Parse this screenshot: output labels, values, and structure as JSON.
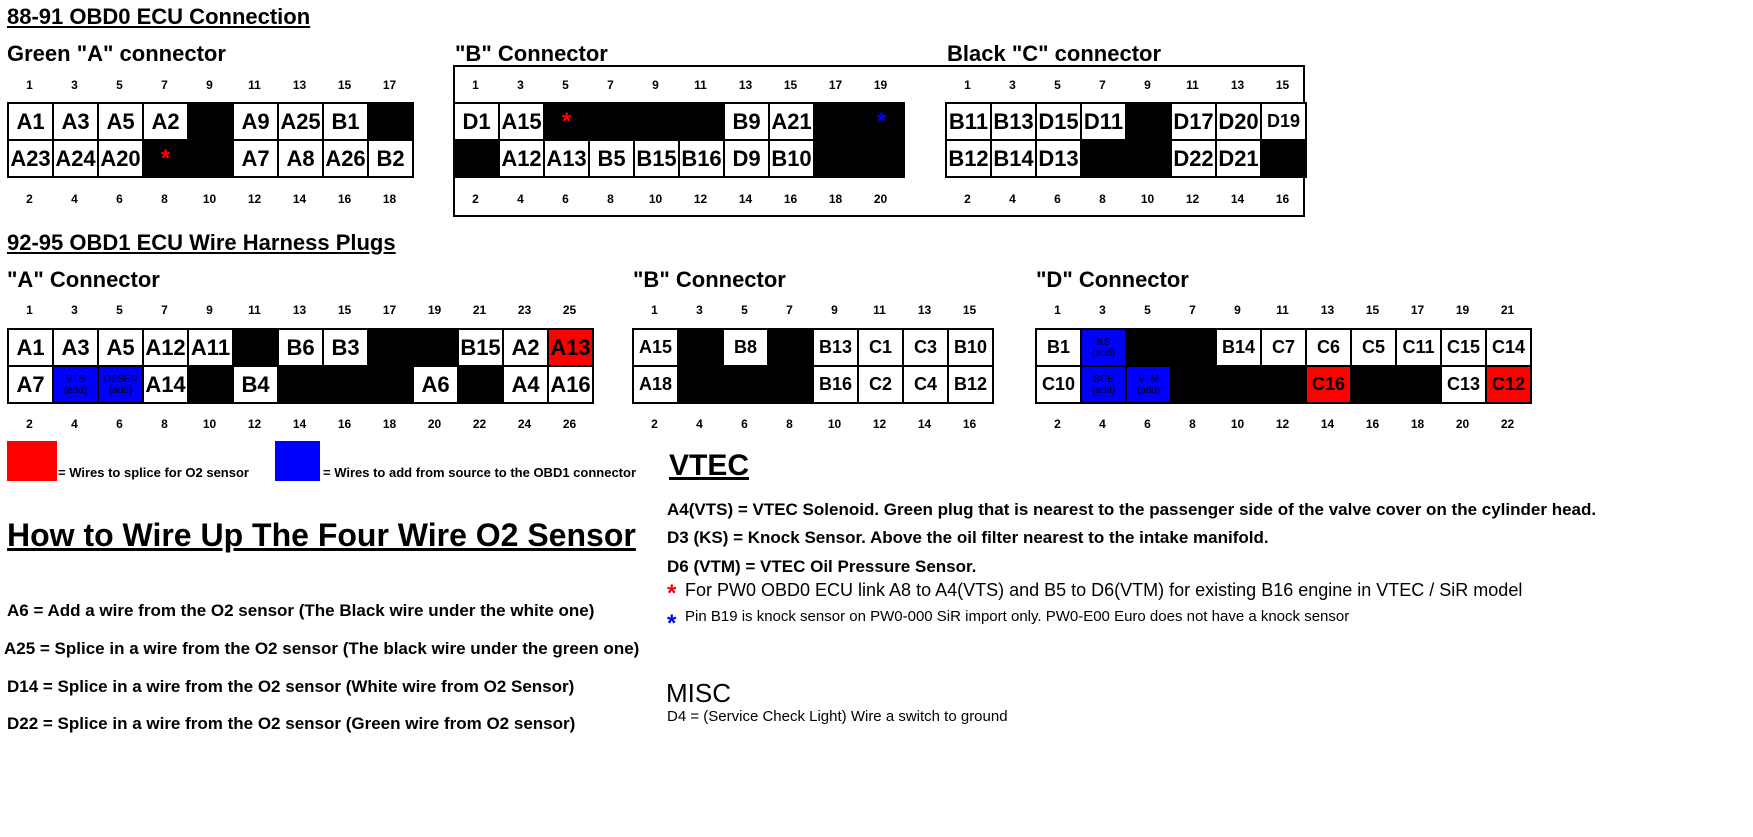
{
  "colors": {
    "red": "#ff0000",
    "blue": "#0000ff",
    "black": "#000000",
    "white": "#ffffff"
  },
  "obd0": {
    "heading": "88-91 OBD0 ECU Connection",
    "a": {
      "title": "Green \"A\" connector",
      "top_pins": [
        "1",
        "3",
        "5",
        "7",
        "9",
        "11",
        "13",
        "15",
        "17"
      ],
      "bottom_pins": [
        "2",
        "4",
        "6",
        "8",
        "10",
        "12",
        "14",
        "16",
        "18"
      ],
      "row1": [
        {
          "t": "A1"
        },
        {
          "t": "A3"
        },
        {
          "t": "A5"
        },
        {
          "t": "A2"
        },
        {
          "t": "",
          "c": "black"
        },
        {
          "t": "A9"
        },
        {
          "t": "A25"
        },
        {
          "t": "B1"
        },
        {
          "t": "",
          "c": "black"
        }
      ],
      "row2": [
        {
          "t": "A23"
        },
        {
          "t": "A24"
        },
        {
          "t": "A20"
        },
        {
          "t": "*",
          "c": "black",
          "star": "red"
        },
        {
          "t": "",
          "c": "black"
        },
        {
          "t": "A7"
        },
        {
          "t": "A8"
        },
        {
          "t": "A26"
        },
        {
          "t": "B2"
        }
      ]
    },
    "b": {
      "title": "\"B\" Connector",
      "top_pins": [
        "1",
        "3",
        "5",
        "7",
        "9",
        "11",
        "13",
        "15",
        "17",
        "19"
      ],
      "bottom_pins": [
        "2",
        "4",
        "6",
        "8",
        "10",
        "12",
        "14",
        "16",
        "18",
        "20"
      ],
      "row1": [
        {
          "t": "D1"
        },
        {
          "t": "A15"
        },
        {
          "t": "*",
          "c": "black",
          "star": "red"
        },
        {
          "t": "",
          "c": "black"
        },
        {
          "t": "",
          "c": "black"
        },
        {
          "t": "",
          "c": "black"
        },
        {
          "t": "B9"
        },
        {
          "t": "A21"
        },
        {
          "t": "",
          "c": "black"
        },
        {
          "t": "*",
          "c": "black",
          "star": "blue"
        }
      ],
      "row2": [
        {
          "t": "",
          "c": "black"
        },
        {
          "t": "A12"
        },
        {
          "t": "A13"
        },
        {
          "t": "B5"
        },
        {
          "t": "B15"
        },
        {
          "t": "B16"
        },
        {
          "t": "D9"
        },
        {
          "t": "B10"
        },
        {
          "t": "",
          "c": "black"
        },
        {
          "t": "",
          "c": "black"
        }
      ]
    },
    "c": {
      "title": "Black \"C\" connector",
      "top_pins": [
        "1",
        "3",
        "5",
        "7",
        "9",
        "11",
        "13",
        "15"
      ],
      "bottom_pins": [
        "2",
        "4",
        "6",
        "8",
        "10",
        "12",
        "14",
        "16"
      ],
      "row1": [
        {
          "t": "B11"
        },
        {
          "t": "B13"
        },
        {
          "t": "D15"
        },
        {
          "t": "D11"
        },
        {
          "t": "",
          "c": "black"
        },
        {
          "t": "D17"
        },
        {
          "t": "D20"
        },
        {
          "t": "D19",
          "small": true
        }
      ],
      "row2": [
        {
          "t": "B12"
        },
        {
          "t": "B14"
        },
        {
          "t": "D13"
        },
        {
          "t": "",
          "c": "black"
        },
        {
          "t": "",
          "c": "black"
        },
        {
          "t": "D22"
        },
        {
          "t": "D21"
        },
        {
          "t": "",
          "c": "black"
        }
      ]
    }
  },
  "obd1": {
    "heading": "92-95 OBD1 ECU Wire Harness Plugs",
    "a": {
      "title": "\"A\" Connector",
      "top_pins": [
        "1",
        "3",
        "5",
        "7",
        "9",
        "11",
        "13",
        "15",
        "17",
        "19",
        "21",
        "23",
        "25"
      ],
      "bottom_pins": [
        "2",
        "4",
        "6",
        "8",
        "10",
        "12",
        "14",
        "16",
        "18",
        "20",
        "22",
        "24",
        "26"
      ],
      "row1": [
        {
          "t": "A1"
        },
        {
          "t": "A3"
        },
        {
          "t": "A5"
        },
        {
          "t": "A12"
        },
        {
          "t": "A11"
        },
        {
          "t": "",
          "c": "black"
        },
        {
          "t": "B6"
        },
        {
          "t": "B3"
        },
        {
          "t": "",
          "c": "black"
        },
        {
          "t": "",
          "c": "black"
        },
        {
          "t": "B15"
        },
        {
          "t": "A2"
        },
        {
          "t": "A13",
          "c": "red"
        }
      ],
      "row2": [
        {
          "t": "A7"
        },
        {
          "t": "VTS",
          "t2": "(add)",
          "c": "blue"
        },
        {
          "t": "O2SEN",
          "t2": "(add)",
          "c": "blue"
        },
        {
          "t": "A14"
        },
        {
          "t": "",
          "c": "black"
        },
        {
          "t": "B4"
        },
        {
          "t": "",
          "c": "black"
        },
        {
          "t": "",
          "c": "black"
        },
        {
          "t": "",
          "c": "black"
        },
        {
          "t": "A6"
        },
        {
          "t": "",
          "c": "black"
        },
        {
          "t": "A4"
        },
        {
          "t": "A16"
        }
      ]
    },
    "b": {
      "title": "\"B\" Connector",
      "top_pins": [
        "1",
        "3",
        "5",
        "7",
        "9",
        "11",
        "13",
        "15"
      ],
      "bottom_pins": [
        "2",
        "4",
        "6",
        "8",
        "10",
        "12",
        "14",
        "16"
      ],
      "row1": [
        {
          "t": "A15",
          "small": true
        },
        {
          "t": "",
          "c": "black"
        },
        {
          "t": "B8",
          "small": true
        },
        {
          "t": "",
          "c": "black"
        },
        {
          "t": "B13",
          "small": true
        },
        {
          "t": "C1",
          "small": true
        },
        {
          "t": "C3",
          "small": true
        },
        {
          "t": "B10",
          "small": true
        }
      ],
      "row2": [
        {
          "t": "A18",
          "small": true
        },
        {
          "t": "",
          "c": "black"
        },
        {
          "t": "",
          "c": "black"
        },
        {
          "t": "",
          "c": "black"
        },
        {
          "t": "B16",
          "small": true
        },
        {
          "t": "C2",
          "small": true
        },
        {
          "t": "C4",
          "small": true
        },
        {
          "t": "B12",
          "small": true
        }
      ]
    },
    "d": {
      "title": "\"D\" Connector",
      "top_pins": [
        "1",
        "3",
        "5",
        "7",
        "9",
        "11",
        "13",
        "15",
        "17",
        "19",
        "21"
      ],
      "bottom_pins": [
        "2",
        "4",
        "6",
        "8",
        "10",
        "12",
        "14",
        "16",
        "18",
        "20",
        "22"
      ],
      "row1": [
        {
          "t": "B1",
          "small": true
        },
        {
          "t": "KS",
          "t2": "(add)",
          "c": "blue"
        },
        {
          "t": "",
          "c": "black"
        },
        {
          "t": "",
          "c": "black"
        },
        {
          "t": "B14",
          "small": true
        },
        {
          "t": "C7",
          "small": true
        },
        {
          "t": "C6",
          "small": true
        },
        {
          "t": "C5",
          "small": true
        },
        {
          "t": "C11",
          "small": true
        },
        {
          "t": "C15",
          "small": true
        },
        {
          "t": "C14",
          "small": true
        }
      ],
      "row2": [
        {
          "t": "C10",
          "small": true
        },
        {
          "t": "SCE",
          "t2": "(add)",
          "c": "blue"
        },
        {
          "t": "VTM",
          "t2": "(add)",
          "c": "blue"
        },
        {
          "t": "",
          "c": "black"
        },
        {
          "t": "",
          "c": "black"
        },
        {
          "t": "",
          "c": "black"
        },
        {
          "t": "C16",
          "c": "red",
          "small": true
        },
        {
          "t": "",
          "c": "black"
        },
        {
          "t": "",
          "c": "black"
        },
        {
          "t": "C13",
          "small": true
        },
        {
          "t": "C12",
          "c": "red",
          "small": true
        }
      ]
    }
  },
  "legend": {
    "red": "= Wires to splice for O2 sensor",
    "blue": "= Wires to add from source to the OBD1 connector"
  },
  "o2": {
    "heading": "How to Wire Up The Four Wire O2 Sensor",
    "lines": [
      "A6 = Add a wire from the O2 sensor (The Black wire under the white one)",
      "A25 = Splice in a wire from the O2 sensor (The black wire under the green one)",
      "D14 = Splice in a wire from the O2 sensor (White wire from O2 Sensor)",
      "D22 = Splice in a wire from the O2 sensor (Green wire from O2 sensor)"
    ]
  },
  "vtec": {
    "heading": "VTEC",
    "lines": [
      "A4(VTS) = VTEC Solenoid.  Green plug that is nearest to the passenger side of the valve cover on the cylinder head.",
      "D3 (KS) = Knock Sensor.    Above the oil filter nearest to the intake manifold.",
      "D6 (VTM) = VTEC Oil Pressure Sensor."
    ],
    "note_red": "For PW0 OBD0 ECU link A8 to A4(VTS) and B5 to D6(VTM) for existing B16 engine in VTEC / SiR model",
    "note_blue": "Pin B19 is knock sensor on PW0-000 SiR import only. PW0-E00 Euro does not have a knock sensor",
    "star": "*"
  },
  "misc": {
    "heading": "MISC",
    "line": "D4 = (Service Check Light) Wire a switch to ground"
  }
}
